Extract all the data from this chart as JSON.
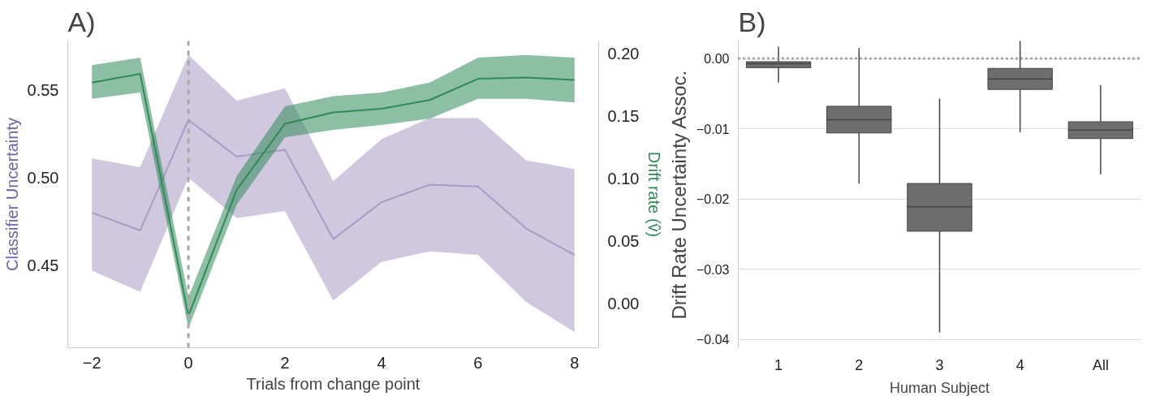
{
  "chart_data": [
    {
      "type": "line",
      "title": "A)",
      "xlabel": "Trials from change point",
      "ylabel": "Classifier Uncertainty",
      "y2label": "Drift rate (v̂)",
      "x": [
        -2,
        -1,
        0,
        1,
        2,
        3,
        4,
        5,
        6,
        7,
        8
      ],
      "xlim": [
        -2.5,
        8.5
      ],
      "xticks": [
        {
          "value": -2,
          "label": "−2"
        },
        0,
        2,
        4,
        6,
        8
      ],
      "ylim": [
        0.403,
        0.578
      ],
      "yticks": [
        {
          "value": 0.45,
          "label": "0.45"
        },
        {
          "value": 0.5,
          "label": "0.50"
        },
        {
          "value": 0.55,
          "label": "0.55"
        }
      ],
      "y2lim": [
        -0.0356,
        0.2103
      ],
      "y2ticks": [
        {
          "value": 0,
          "label": "0.00"
        },
        {
          "value": 0.05,
          "label": "0.05"
        },
        {
          "value": 0.1,
          "label": "0.10"
        },
        {
          "value": 0.15,
          "label": "0.15"
        },
        {
          "value": 0.2,
          "label": "0.20"
        }
      ],
      "series": [
        {
          "color": "#a99bc4",
          "axis": "y",
          "values": [
            0.48,
            0.47,
            0.533,
            0.512,
            0.516,
            0.465,
            0.486,
            0.496,
            0.495,
            0.471,
            0.456
          ],
          "lower": [
            0.447,
            0.435,
            0.5,
            0.477,
            0.481,
            0.43,
            0.452,
            0.458,
            0.456,
            0.429,
            0.412
          ],
          "upper": [
            0.511,
            0.506,
            0.57,
            0.544,
            0.551,
            0.498,
            0.522,
            0.534,
            0.534,
            0.51,
            0.505
          ]
        },
        {
          "color": "#2e8b57",
          "axis": "y2",
          "values": [
            0.177,
            0.184,
            -0.01,
            0.091,
            0.144,
            0.153,
            0.156,
            0.163,
            0.18,
            0.181,
            0.179
          ],
          "lower": [
            0.164,
            0.169,
            -0.02,
            0.079,
            0.133,
            0.139,
            0.143,
            0.148,
            0.164,
            0.164,
            0.161
          ],
          "upper": [
            0.191,
            0.197,
            0.005,
            0.102,
            0.158,
            0.166,
            0.169,
            0.177,
            0.197,
            0.199,
            0.197
          ]
        }
      ],
      "ref_lines": [
        {
          "axis": "x",
          "value": 0,
          "label": null,
          "color": "#a8a8a8",
          "line_style": "dashed"
        }
      ],
      "grid": false
    },
    {
      "type": "box",
      "title": "B)",
      "xlabel": "Human Subject",
      "ylabel": "Drift Rate Uncertainty Assoc.",
      "categories": [
        "1",
        "2",
        "3",
        "4",
        "All"
      ],
      "ylim": [
        -0.0412,
        0.0025
      ],
      "yticks": [
        {
          "value": 0,
          "label": "0.00"
        },
        {
          "value": -0.01,
          "label": "−0.01"
        },
        {
          "value": -0.02,
          "label": "−0.02"
        },
        {
          "value": -0.03,
          "label": "−0.03"
        },
        {
          "value": -0.04,
          "label": "−0.04"
        }
      ],
      "boxes": [
        {
          "low": -0.0034,
          "q1": -0.0013,
          "median": -0.00075,
          "q3": -0.00045,
          "high": 0.0017
        },
        {
          "low": -0.0178,
          "q1": -0.0106,
          "median": -0.0087,
          "q3": -0.0068,
          "high": 0.0015
        },
        {
          "low": -0.039,
          "q1": -0.0246,
          "median": -0.0211,
          "q3": -0.0178,
          "high": -0.0057
        },
        {
          "low": -0.0105,
          "q1": -0.0044,
          "median": -0.0029,
          "q3": -0.0014,
          "high": 0.003
        },
        {
          "low": -0.0165,
          "q1": -0.0114,
          "median": -0.0102,
          "q3": -0.009,
          "high": -0.0038
        }
      ],
      "color": "#6e6e6e",
      "ref_lines": [
        {
          "axis": "y",
          "value": 0,
          "label": null,
          "color": "#8a8a8a",
          "line_style": "dotted"
        }
      ],
      "grid": "y"
    }
  ]
}
